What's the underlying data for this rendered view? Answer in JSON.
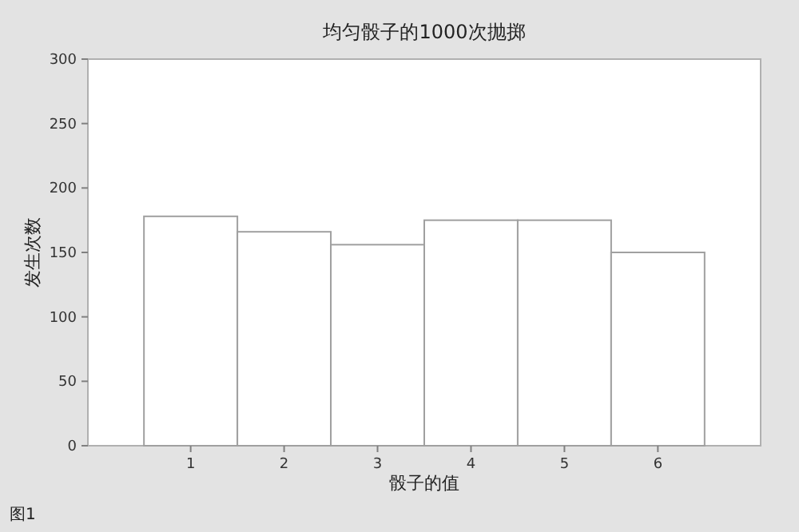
{
  "chart_data": {
    "type": "bar",
    "title": "均匀骰子的1000次抛掷",
    "xlabel": "骰子的值",
    "ylabel": "发生次数",
    "categories": [
      "1",
      "2",
      "3",
      "4",
      "5",
      "6"
    ],
    "values": [
      178,
      166,
      156,
      175,
      175,
      150
    ],
    "color": "#ffffff",
    "ylim": [
      0,
      300
    ],
    "yticks": [
      0,
      50,
      100,
      150,
      200,
      250,
      300
    ],
    "annotations": [
      "图1"
    ]
  }
}
